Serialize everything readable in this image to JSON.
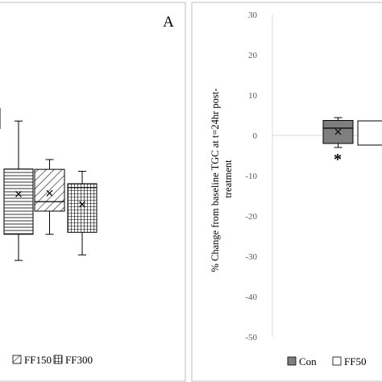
{
  "chart_data": [
    {
      "type": "box",
      "panel_label": "A",
      "legend": [
        {
          "name": "FF150",
          "pattern": "diag"
        },
        {
          "name": "FF300",
          "pattern": "grid"
        }
      ],
      "series": [
        {
          "name": "",
          "pattern": "hlines",
          "min": -22.5,
          "q1": -14.5,
          "median": null,
          "q3": 5.5,
          "max": 20.2,
          "mean": -2.2
        },
        {
          "name": "FF150",
          "pattern": "diag",
          "min": -14.5,
          "q1": -7.4,
          "median": -4.5,
          "q3": 5.4,
          "max": 8.4,
          "mean": -1.9
        },
        {
          "name": "FF300",
          "pattern": "grid",
          "min": -20.8,
          "q1": -13.9,
          "median": -0.2,
          "q3": 1.0,
          "max": 4.8,
          "mean": -5.3
        }
      ],
      "notes": "left panel, cropped; y-axis not visible"
    },
    {
      "type": "box",
      "ylabel": "% Change from baseline TGC at t=24hr post-treatment",
      "ylim": [
        -50,
        30
      ],
      "yticks": [
        30,
        20,
        10,
        0,
        -10,
        -20,
        -30,
        -40,
        -50
      ],
      "legend": [
        {
          "name": "Con",
          "color": "#7f7f7f"
        },
        {
          "name": "FF50",
          "color": "#ffffff"
        }
      ],
      "series": [
        {
          "name": "Con",
          "color": "#7f7f7f",
          "min": -3.0,
          "q1": -2.0,
          "median": 1.8,
          "q3": 3.7,
          "max": 4.4,
          "mean": 0.9,
          "annotation": "*"
        }
      ],
      "notes": "right panel, cropped"
    }
  ],
  "colors": {
    "axis": "#d9d9d9",
    "frame": "#bfbfbf",
    "ink": "#000000",
    "con_fill": "#7f7f7f"
  }
}
